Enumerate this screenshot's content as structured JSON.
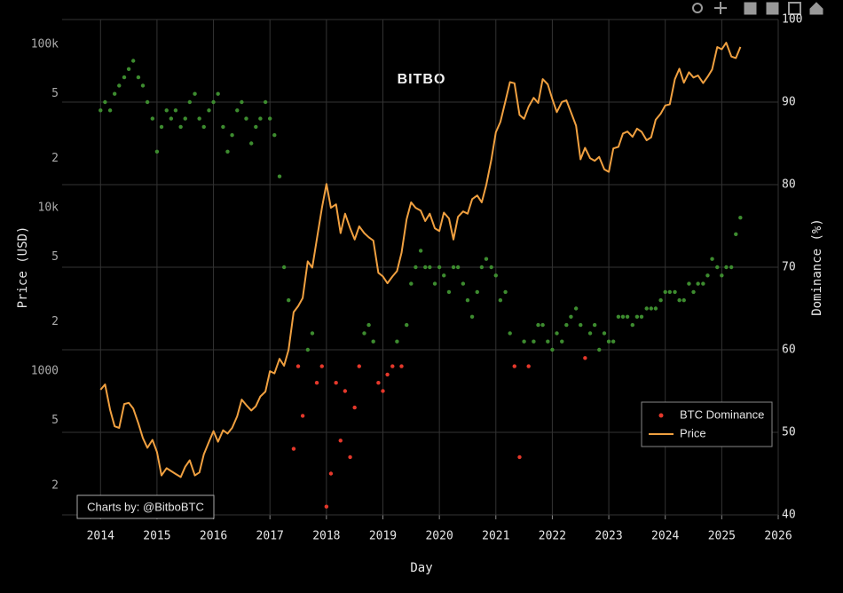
{
  "chart_data": {
    "type": "line",
    "watermark": "BITBO",
    "annotation": "Charts by: @BitboBTC",
    "x_label": "Day",
    "y_label": "Price (USD)",
    "y2_label": "Dominance (%)",
    "yscale": "log",
    "grid": true,
    "legend": "lower right",
    "xlim": [
      2013.32,
      2026
    ],
    "xticks": [
      2014,
      2015,
      2016,
      2017,
      2018,
      2019,
      2020,
      2021,
      2022,
      2023,
      2024,
      2025,
      2026
    ],
    "ylim": [
      132,
      142000
    ],
    "yticks": [
      {
        "value": 100000,
        "label": "100k"
      },
      {
        "value": 50000,
        "label": "5"
      },
      {
        "value": 20000,
        "label": "2"
      },
      {
        "value": 10000,
        "label": "10k"
      },
      {
        "value": 5000,
        "label": "5"
      },
      {
        "value": 2000,
        "label": "2"
      },
      1000,
      {
        "value": 500,
        "label": "5"
      },
      {
        "value": 200,
        "label": "2"
      }
    ],
    "y2lim": [
      40,
      100
    ],
    "y2ticks": [
      40,
      50,
      60,
      70,
      80,
      90,
      100
    ],
    "x": [
      2014.0,
      2014.08,
      2014.17,
      2014.25,
      2014.33,
      2014.42,
      2014.5,
      2014.58,
      2014.67,
      2014.75,
      2014.83,
      2014.92,
      2015.0,
      2015.08,
      2015.17,
      2015.25,
      2015.33,
      2015.42,
      2015.5,
      2015.58,
      2015.67,
      2015.75,
      2015.83,
      2015.92,
      2016.0,
      2016.08,
      2016.17,
      2016.25,
      2016.33,
      2016.42,
      2016.5,
      2016.58,
      2016.67,
      2016.75,
      2016.83,
      2016.92,
      2017.0,
      2017.08,
      2017.17,
      2017.25,
      2017.33,
      2017.42,
      2017.5,
      2017.58,
      2017.67,
      2017.75,
      2017.83,
      2017.92,
      2018.0,
      2018.08,
      2018.17,
      2018.25,
      2018.33,
      2018.42,
      2018.5,
      2018.58,
      2018.67,
      2018.75,
      2018.83,
      2018.92,
      2019.0,
      2019.08,
      2019.17,
      2019.25,
      2019.33,
      2019.42,
      2019.5,
      2019.58,
      2019.67,
      2019.75,
      2019.83,
      2019.92,
      2020.0,
      2020.08,
      2020.17,
      2020.25,
      2020.33,
      2020.42,
      2020.5,
      2020.58,
      2020.67,
      2020.75,
      2020.83,
      2020.92,
      2021.0,
      2021.08,
      2021.17,
      2021.25,
      2021.33,
      2021.42,
      2021.5,
      2021.58,
      2021.67,
      2021.75,
      2021.83,
      2021.92,
      2022.0,
      2022.08,
      2022.17,
      2022.25,
      2022.33,
      2022.42,
      2022.5,
      2022.58,
      2022.67,
      2022.75,
      2022.83,
      2022.92,
      2023.0,
      2023.08,
      2023.17,
      2023.25,
      2023.33,
      2023.42,
      2023.5,
      2023.58,
      2023.67,
      2023.75,
      2023.83,
      2023.92,
      2024.0,
      2024.08,
      2024.17,
      2024.25,
      2024.33,
      2024.42,
      2024.5,
      2024.58,
      2024.67,
      2024.75,
      2024.83,
      2024.92,
      2025.0,
      2025.08,
      2025.17,
      2025.25,
      2025.33
    ],
    "series": [
      {
        "name": "BTC Dominance",
        "type": "scatter",
        "axis": "y2",
        "color": "#e5382b",
        "values": [
          89,
          90,
          89,
          91,
          92,
          93,
          94,
          95,
          93,
          92,
          90,
          88,
          84,
          87,
          89,
          88,
          89,
          87,
          88,
          90,
          91,
          88,
          87,
          89,
          90,
          91,
          87,
          84,
          86,
          89,
          90,
          88,
          85,
          87,
          88,
          90,
          88,
          86,
          81,
          70,
          66,
          48,
          58,
          52,
          60,
          62,
          56,
          58,
          41,
          45,
          56,
          49,
          55,
          47,
          53,
          58,
          62,
          63,
          61,
          56,
          55,
          57,
          58,
          61,
          58,
          63,
          68,
          70,
          72,
          70,
          70,
          68,
          70,
          69,
          67,
          70,
          70,
          68,
          66,
          64,
          67,
          70,
          71,
          70,
          69,
          66,
          67,
          62,
          58,
          47,
          61,
          58,
          61,
          63,
          63,
          61,
          60,
          62,
          61,
          63,
          64,
          65,
          63,
          59,
          62,
          63,
          60,
          62,
          61,
          61,
          64,
          64,
          64,
          63,
          64,
          64,
          65,
          65,
          65,
          66,
          67,
          67,
          67,
          66,
          66,
          68,
          67,
          68,
          68,
          69,
          71,
          70,
          69,
          70,
          70,
          74,
          76
        ],
        "colors": [
          "#3d8c2f",
          "#3d8c2f",
          "#3d8c2f",
          "#3d8c2f",
          "#3d8c2f",
          "#3d8c2f",
          "#3d8c2f",
          "#3d8c2f",
          "#3d8c2f",
          "#3d8c2f",
          "#3d8c2f",
          "#3d8c2f",
          "#3d8c2f",
          "#3d8c2f",
          "#3d8c2f",
          "#3d8c2f",
          "#3d8c2f",
          "#3d8c2f",
          "#3d8c2f",
          "#3d8c2f",
          "#3d8c2f",
          "#3d8c2f",
          "#3d8c2f",
          "#3d8c2f",
          "#3d8c2f",
          "#3d8c2f",
          "#3d8c2f",
          "#3d8c2f",
          "#3d8c2f",
          "#3d8c2f",
          "#3d8c2f",
          "#3d8c2f",
          "#3d8c2f",
          "#3d8c2f",
          "#3d8c2f",
          "#3d8c2f",
          "#3d8c2f",
          "#3d8c2f",
          "#3d8c2f",
          "#3d8c2f",
          "#3d8c2f",
          "#e5382b",
          "#e5382b",
          "#e5382b",
          "#3d8c2f",
          "#3d8c2f",
          "#e5382b",
          "#e5382b",
          "#e5382b",
          "#e5382b",
          "#e5382b",
          "#e5382b",
          "#e5382b",
          "#e5382b",
          "#e5382b",
          "#e5382b",
          "#3d8c2f",
          "#3d8c2f",
          "#3d8c2f",
          "#e5382b",
          "#e5382b",
          "#e5382b",
          "#e5382b",
          "#3d8c2f",
          "#e5382b",
          "#3d8c2f",
          "#3d8c2f",
          "#3d8c2f",
          "#3d8c2f",
          "#3d8c2f",
          "#3d8c2f",
          "#3d8c2f",
          "#3d8c2f",
          "#3d8c2f",
          "#3d8c2f",
          "#3d8c2f",
          "#3d8c2f",
          "#3d8c2f",
          "#3d8c2f",
          "#3d8c2f",
          "#3d8c2f",
          "#3d8c2f",
          "#3d8c2f",
          "#3d8c2f",
          "#3d8c2f",
          "#3d8c2f",
          "#3d8c2f",
          "#3d8c2f",
          "#e5382b",
          "#e5382b",
          "#3d8c2f",
          "#e5382b",
          "#3d8c2f",
          "#3d8c2f",
          "#3d8c2f",
          "#3d8c2f",
          "#3d8c2f",
          "#3d8c2f",
          "#3d8c2f",
          "#3d8c2f",
          "#3d8c2f",
          "#3d8c2f",
          "#3d8c2f",
          "#e5382b",
          "#3d8c2f",
          "#3d8c2f",
          "#3d8c2f",
          "#3d8c2f",
          "#3d8c2f",
          "#3d8c2f",
          "#3d8c2f",
          "#3d8c2f",
          "#3d8c2f",
          "#3d8c2f",
          "#3d8c2f",
          "#3d8c2f",
          "#3d8c2f",
          "#3d8c2f",
          "#3d8c2f",
          "#3d8c2f",
          "#3d8c2f",
          "#3d8c2f",
          "#3d8c2f",
          "#3d8c2f",
          "#3d8c2f",
          "#3d8c2f",
          "#3d8c2f",
          "#3d8c2f",
          "#3d8c2f",
          "#3d8c2f",
          "#3d8c2f",
          "#3d8c2f",
          "#3d8c2f",
          "#3d8c2f",
          "#3d8c2f",
          "#3d8c2f",
          "#3d8c2f"
        ]
      },
      {
        "name": "Price",
        "type": "line",
        "axis": "y",
        "color": "#f0a040",
        "values": [
          770,
          830,
          580,
          460,
          450,
          630,
          640,
          590,
          480,
          390,
          340,
          380,
          320,
          230,
          255,
          245,
          235,
          225,
          260,
          285,
          230,
          240,
          310,
          370,
          430,
          370,
          435,
          415,
          450,
          530,
          670,
          620,
          575,
          610,
          700,
          750,
          1000,
          970,
          1190,
          1080,
          1350,
          2300,
          2500,
          2800,
          4700,
          4300,
          6400,
          10000,
          14000,
          10000,
          10500,
          7000,
          9200,
          7500,
          6400,
          7700,
          7000,
          6600,
          6300,
          4000,
          3800,
          3450,
          3800,
          4100,
          5300,
          8500,
          10800,
          10000,
          9600,
          8300,
          9200,
          7500,
          7200,
          9350,
          8600,
          6400,
          8800,
          9500,
          9200,
          11300,
          11900,
          10800,
          13800,
          19700,
          29000,
          33500,
          45000,
          58800,
          57800,
          37000,
          35000,
          41500,
          47100,
          43800,
          61300,
          57000,
          46300,
          38500,
          44400,
          45500,
          38500,
          31800,
          19800,
          23300,
          20100,
          19400,
          20500,
          17200,
          16600,
          23100,
          23600,
          28500,
          29300,
          27200,
          30500,
          29200,
          25900,
          27000,
          34600,
          37700,
          42300,
          43000,
          61200,
          71000,
          58300,
          67500,
          62700,
          64600,
          58000,
          63300,
          70200,
          96400,
          93400,
          102400,
          84300,
          82500,
          96500
        ]
      }
    ]
  }
}
